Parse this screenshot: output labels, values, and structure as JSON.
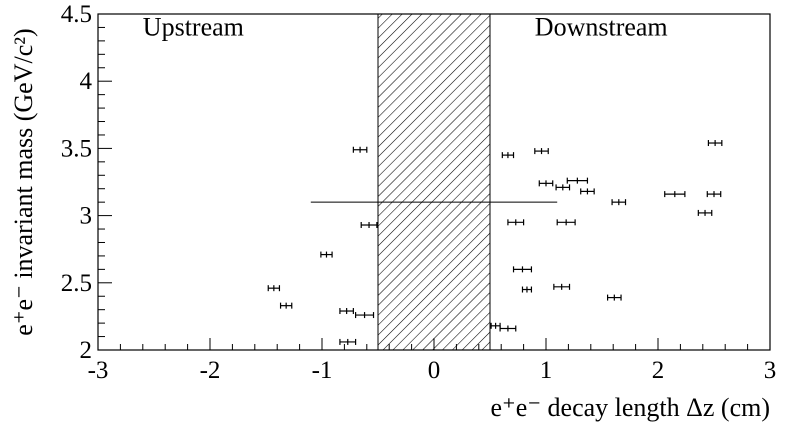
{
  "chart_data": {
    "type": "scatter",
    "title": "",
    "xlabel": "e⁺e⁻ decay length  Δz   (cm)",
    "ylabel": "e⁺e⁻ invariant mass (GeV/c²)",
    "xlim": [
      -3,
      3
    ],
    "ylim": [
      2,
      4.5
    ],
    "x_ticks": [
      "-3",
      "-2",
      "-1",
      "0",
      "1",
      "2",
      "3"
    ],
    "y_ticks": [
      "2",
      "2.5",
      "3",
      "3.5",
      "4",
      "4.5"
    ],
    "grid": false,
    "legend": "none",
    "annotations": [
      {
        "text": "Upstream",
        "x": -2.6,
        "y": 4.34
      },
      {
        "text": "Downstream",
        "x": 0.9,
        "y": 4.34
      }
    ],
    "shaded_region": {
      "x": [
        -0.5,
        0.5
      ],
      "pattern": "diagonal-hatch"
    },
    "reference_line": {
      "y": 3.1,
      "x": [
        -1.1,
        1.1
      ],
      "label": ""
    },
    "points": [
      {
        "x": -0.66,
        "y": 3.49,
        "xerr": 0.06
      },
      {
        "x": -0.58,
        "y": 2.93,
        "xerr": 0.07
      },
      {
        "x": -0.96,
        "y": 2.71,
        "xerr": 0.05
      },
      {
        "x": -1.43,
        "y": 2.46,
        "xerr": 0.05
      },
      {
        "x": -1.32,
        "y": 2.33,
        "xerr": 0.05
      },
      {
        "x": -0.78,
        "y": 2.29,
        "xerr": 0.06
      },
      {
        "x": -0.62,
        "y": 2.26,
        "xerr": 0.08
      },
      {
        "x": -0.77,
        "y": 2.06,
        "xerr": 0.07
      },
      {
        "x": 0.66,
        "y": 3.45,
        "xerr": 0.05
      },
      {
        "x": 0.96,
        "y": 3.48,
        "xerr": 0.06
      },
      {
        "x": 2.51,
        "y": 3.54,
        "xerr": 0.06
      },
      {
        "x": 1.28,
        "y": 3.26,
        "xerr": 0.09
      },
      {
        "x": 1.0,
        "y": 3.24,
        "xerr": 0.06
      },
      {
        "x": 1.15,
        "y": 3.21,
        "xerr": 0.06
      },
      {
        "x": 1.37,
        "y": 3.18,
        "xerr": 0.06
      },
      {
        "x": 2.15,
        "y": 3.16,
        "xerr": 0.09
      },
      {
        "x": 2.5,
        "y": 3.16,
        "xerr": 0.06
      },
      {
        "x": 1.65,
        "y": 3.1,
        "xerr": 0.06
      },
      {
        "x": 2.42,
        "y": 3.02,
        "xerr": 0.06
      },
      {
        "x": 0.73,
        "y": 2.95,
        "xerr": 0.07
      },
      {
        "x": 1.18,
        "y": 2.95,
        "xerr": 0.08
      },
      {
        "x": 0.79,
        "y": 2.6,
        "xerr": 0.08
      },
      {
        "x": 0.83,
        "y": 2.45,
        "xerr": 0.04
      },
      {
        "x": 1.14,
        "y": 2.47,
        "xerr": 0.07
      },
      {
        "x": 1.61,
        "y": 2.39,
        "xerr": 0.06
      },
      {
        "x": 0.55,
        "y": 2.18,
        "xerr": 0.04
      },
      {
        "x": 0.66,
        "y": 2.16,
        "xerr": 0.07
      }
    ]
  }
}
